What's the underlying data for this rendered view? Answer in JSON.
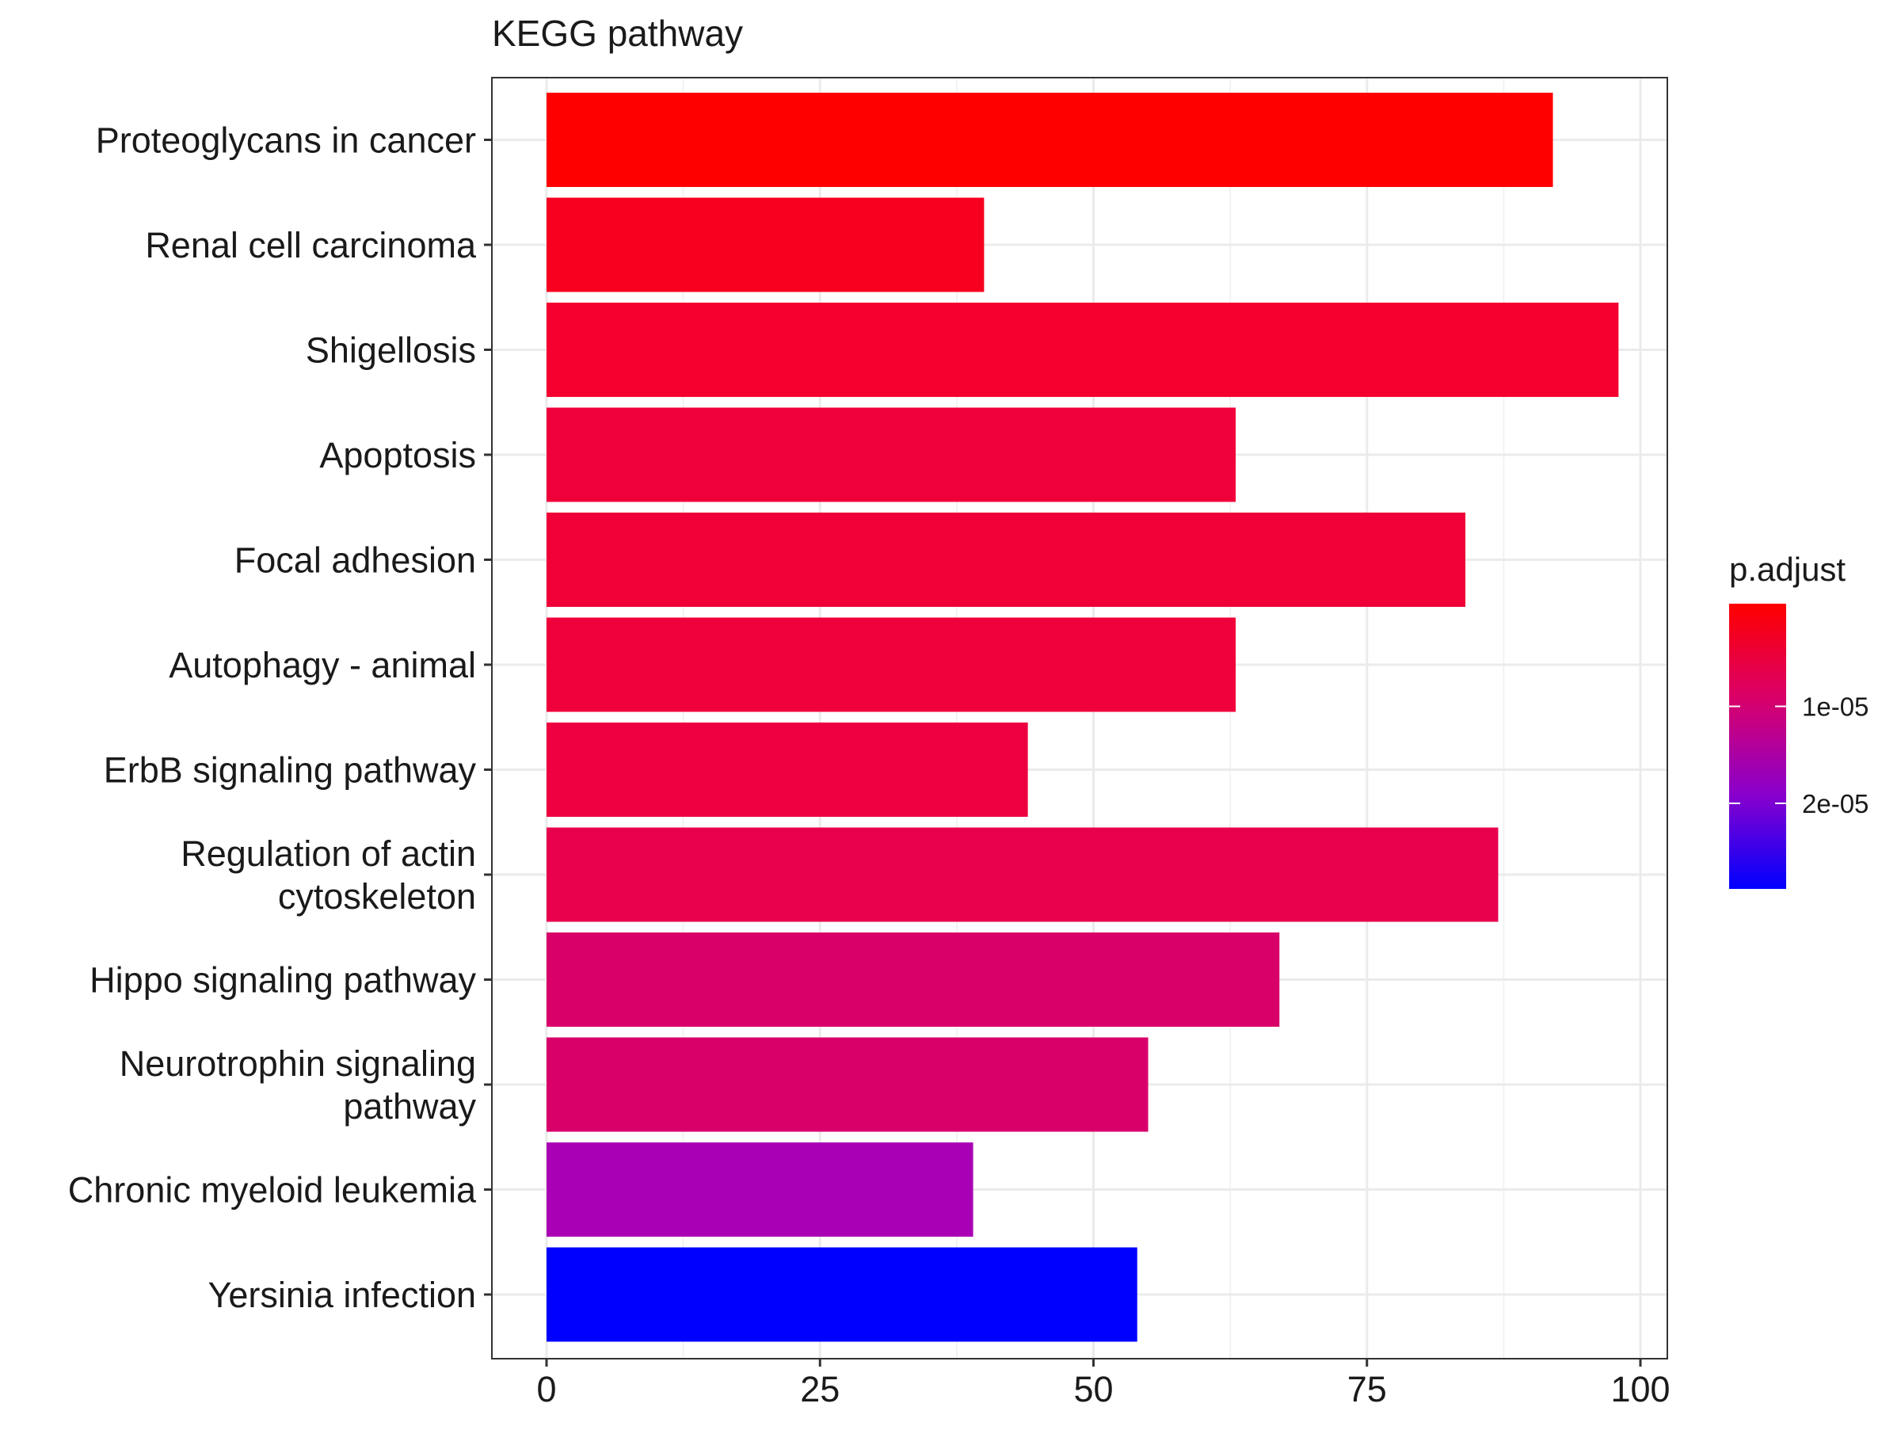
{
  "chart_data": {
    "type": "bar",
    "orientation": "horizontal",
    "title": "KEGG pathway",
    "xlabel": "",
    "ylabel": "",
    "xlim": [
      0,
      100
    ],
    "x_ticks": [
      "0",
      "25",
      "50",
      "75",
      "100"
    ],
    "x_tick_values": [
      0,
      25,
      50,
      75,
      100
    ],
    "grid": true,
    "legend_placement": "right",
    "categories": [
      "Proteoglycans in cancer",
      "Renal cell carcinoma",
      "Shigellosis",
      "Apoptosis",
      "Focal adhesion",
      "Autophagy - animal",
      "ErbB signaling pathway",
      "Regulation of actin cytoskeleton",
      "Hippo signaling pathway",
      "Neurotrophin signaling pathway",
      "Chronic myeloid leukemia",
      "Yersinia infection"
    ],
    "category_label_lines": [
      [
        "Proteoglycans in cancer"
      ],
      [
        "Renal cell carcinoma"
      ],
      [
        "Shigellosis"
      ],
      [
        "Apoptosis"
      ],
      [
        "Focal adhesion"
      ],
      [
        "Autophagy - animal"
      ],
      [
        "ErbB signaling pathway"
      ],
      [
        "Regulation of actin",
        "cytoskeleton"
      ],
      [
        "Hippo signaling pathway"
      ],
      [
        "Neurotrophin signaling",
        "pathway"
      ],
      [
        "Chronic myeloid leukemia"
      ],
      [
        "Yersinia infection"
      ]
    ],
    "values": [
      92,
      40,
      98,
      63,
      84,
      63,
      44,
      87,
      67,
      55,
      39,
      54
    ],
    "bar_colors": [
      "#FF0000",
      "#F70020",
      "#F5002E",
      "#F0003A",
      "#F00036",
      "#F0003A",
      "#EE0040",
      "#E8004C",
      "#D9006A",
      "#D9006A",
      "#AA00B5",
      "#0000FF"
    ],
    "legend": {
      "title": "p.adjust",
      "gradient_colors": [
        "#FF0000",
        "#D9006A",
        "#8A00CC",
        "#0000FF"
      ],
      "tick_labels": [
        "1e-05",
        "2e-05"
      ],
      "tick_fractions": [
        0.36,
        0.7
      ]
    }
  }
}
